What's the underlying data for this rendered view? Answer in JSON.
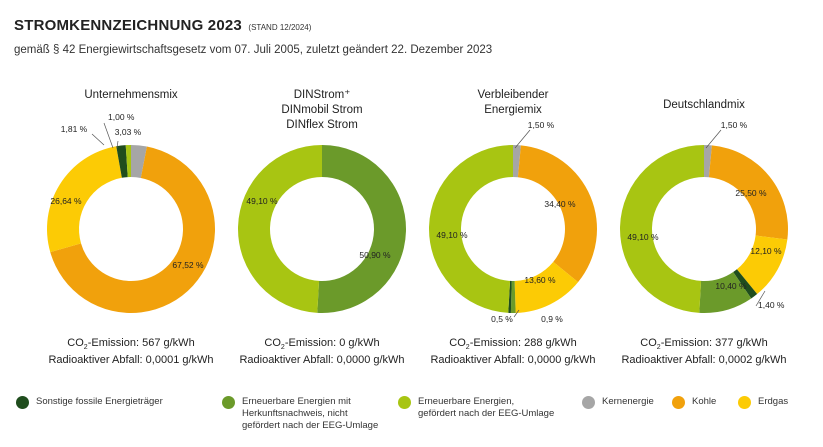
{
  "header": {
    "title": "STROMKENNZEICHNUNG 2023",
    "title_note": "(STAND 12/2024)",
    "subtitle": "gemäß § 42 Energiewirtschaftsgesetz vom  07. Juli 2005, zuletzt geändert 22. Dezember 2023"
  },
  "colors": {
    "sonstige": "#1f4d1d",
    "ee_hkn": "#6b9a2a",
    "ee_eeg": "#a8c512",
    "kern": "#a6a6a6",
    "kohle": "#f1a10c",
    "erdgas": "#fccb05"
  },
  "legend": [
    {
      "key": "sonstige",
      "lines": [
        "Sonstige fossile Energieträger"
      ]
    },
    {
      "key": "ee_hkn",
      "lines": [
        "Erneuerbare Energien mit",
        "Herkunftsnachweis, nicht",
        "gefördert nach der EEG-Umlage"
      ]
    },
    {
      "key": "ee_eeg",
      "lines": [
        "Erneuerbare Energien,",
        "gefördert nach der EEG-Umlage"
      ]
    },
    {
      "key": "kern",
      "lines": [
        "Kernenergie"
      ]
    },
    {
      "key": "kohle",
      "lines": [
        "Kohle"
      ]
    },
    {
      "key": "erdgas",
      "lines": [
        "Erdgas"
      ]
    }
  ],
  "chart_data": [
    {
      "type": "pie",
      "title_lines": [
        "Unternehmensmix"
      ],
      "co2_label": "CO",
      "co2_value": "-Emission: 567 g/kWh",
      "waste": "Radioaktiver Abfall: 0,0001 g/kWh",
      "slices": [
        {
          "key": "kern",
          "value": 3.03,
          "label": "3,03 %"
        },
        {
          "key": "kohle",
          "value": 67.52,
          "label": "67,52 %"
        },
        {
          "key": "erdgas",
          "value": 26.64,
          "label": "26,64 %"
        },
        {
          "key": "sonstige",
          "value": 1.81,
          "label": "1,81 %"
        },
        {
          "key": "ee_eeg",
          "value": 1.0,
          "label": "1,00 %"
        }
      ]
    },
    {
      "type": "pie",
      "title_lines": [
        "DINStrom⁺",
        "DINmobil Strom",
        "DINflex Strom"
      ],
      "co2_label": "CO",
      "co2_value": "-Emission: 0 g/kWh",
      "waste": "Radioaktiver Abfall: 0,0000 g/kWh",
      "slices": [
        {
          "key": "ee_hkn",
          "value": 50.9,
          "label": "50,90 %"
        },
        {
          "key": "ee_eeg",
          "value": 49.1,
          "label": "49,10 %"
        }
      ]
    },
    {
      "type": "pie",
      "title_lines": [
        "Verbleibender",
        "Energiemix"
      ],
      "co2_label": "CO",
      "co2_value": "-Emission: 288 g/kWh",
      "waste": "Radioaktiver Abfall: 0,0000 g/kWh",
      "slices": [
        {
          "key": "kern",
          "value": 1.5,
          "label": "1,50 %"
        },
        {
          "key": "kohle",
          "value": 34.4,
          "label": "34,40 %"
        },
        {
          "key": "erdgas",
          "value": 13.6,
          "label": "13,60 %"
        },
        {
          "key": "ee_hkn",
          "value": 0.9,
          "label": "0,9 %"
        },
        {
          "key": "sonstige",
          "value": 0.5,
          "label": "0,5 %"
        },
        {
          "key": "ee_eeg",
          "value": 49.1,
          "label": "49,10 %"
        }
      ]
    },
    {
      "type": "pie",
      "title_lines": [
        "Deutschlandmix"
      ],
      "co2_label": "CO",
      "co2_value": "-Emission: 377 g/kWh",
      "waste": "Radioaktiver Abfall: 0,0002 g/kWh",
      "slices": [
        {
          "key": "kern",
          "value": 1.5,
          "label": "1,50 %"
        },
        {
          "key": "kohle",
          "value": 25.5,
          "label": "25,50 %"
        },
        {
          "key": "erdgas",
          "value": 12.1,
          "label": "12,10 %"
        },
        {
          "key": "sonstige",
          "value": 1.4,
          "label": "1,40 %"
        },
        {
          "key": "ee_hkn",
          "value": 10.4,
          "label": "10,40 %"
        },
        {
          "key": "ee_eeg",
          "value": 49.1,
          "label": "49,10 %"
        }
      ]
    }
  ]
}
